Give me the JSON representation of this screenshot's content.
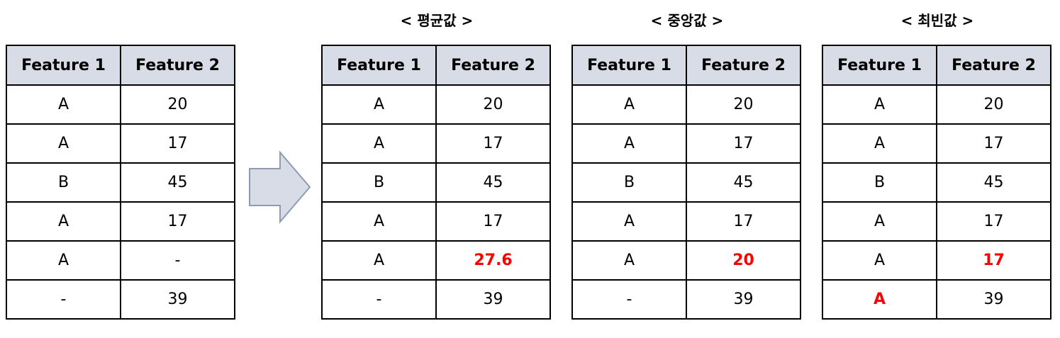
{
  "headers": [
    "Feature 1",
    "Feature 2"
  ],
  "tables": [
    {
      "id": "original",
      "caption": "",
      "rows": [
        [
          "A",
          "20"
        ],
        [
          "A",
          "17"
        ],
        [
          "B",
          "45"
        ],
        [
          "A",
          "17"
        ],
        [
          "A",
          "-"
        ],
        [
          "-",
          "39"
        ]
      ],
      "highlight": []
    },
    {
      "id": "mean",
      "caption": "< 평균값 >",
      "rows": [
        [
          "A",
          "20"
        ],
        [
          "A",
          "17"
        ],
        [
          "B",
          "45"
        ],
        [
          "A",
          "17"
        ],
        [
          "A",
          "27.6"
        ],
        [
          "-",
          "39"
        ]
      ],
      "highlight": [
        [
          4,
          1
        ]
      ]
    },
    {
      "id": "median",
      "caption": "< 중앙값 >",
      "rows": [
        [
          "A",
          "20"
        ],
        [
          "A",
          "17"
        ],
        [
          "B",
          "45"
        ],
        [
          "A",
          "17"
        ],
        [
          "A",
          "20"
        ],
        [
          "-",
          "39"
        ]
      ],
      "highlight": [
        [
          4,
          1
        ]
      ]
    },
    {
      "id": "mode",
      "caption": "< 최빈값 >",
      "rows": [
        [
          "A",
          "20"
        ],
        [
          "A",
          "17"
        ],
        [
          "B",
          "45"
        ],
        [
          "A",
          "17"
        ],
        [
          "A",
          "17"
        ],
        [
          "A",
          "39"
        ]
      ],
      "highlight": [
        [
          4,
          1
        ],
        [
          5,
          0
        ]
      ]
    }
  ],
  "colors": {
    "header_bg": "#d7dce6",
    "highlight": "#ff0000",
    "arrow_fill": "#d7dce6",
    "arrow_stroke": "#8e9bb3"
  },
  "arrow_icon": "right-arrow-icon"
}
